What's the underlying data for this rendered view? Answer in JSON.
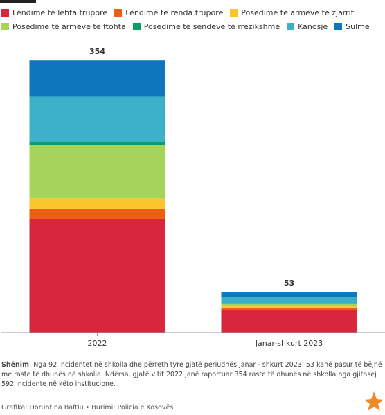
{
  "chart_data": {
    "type": "stacked_bar",
    "categories": [
      "2022",
      "Janar-shkurt 2023"
    ],
    "totals": [
      354,
      53
    ],
    "series": [
      {
        "name": "Lëndime të lehta trupore",
        "color": "#d7263d",
        "values": [
          148,
          30
        ]
      },
      {
        "name": "Lëndime të rënda trupore",
        "color": "#ea6012",
        "values": [
          13,
          2
        ]
      },
      {
        "name": "Posedime të armëve të zjarrit",
        "color": "#fbc62d",
        "values": [
          14,
          2
        ]
      },
      {
        "name": "Posedime të armëve të ftohta",
        "color": "#a6d45a",
        "values": [
          69,
          3
        ]
      },
      {
        "name": "Posedime të sendeve të rrezikshme",
        "color": "#0a9e5f",
        "values": [
          4,
          1
        ]
      },
      {
        "name": "Kanosje",
        "color": "#3cb0c9",
        "values": [
          59,
          8
        ]
      },
      {
        "name": "Sulme",
        "color": "#0d76bd",
        "values": [
          47,
          7
        ]
      }
    ],
    "ylim": [
      0,
      400
    ]
  },
  "note_label": "Shënim",
  "note": ": Nga 92 incidentet në shkolla dhe përreth tyre gjatë periudhës janar - shkurt 2023, 53 kanë pasur të bëjnë me raste të dhunës në shkolla. Ndërsa, gjatë vitit 2022 janë raportuar 354 raste të dhunës në shkolla nga gjithsej 592 incidente në këto institucione.",
  "source": "Grafika: Doruntina Baftiu • Burimi: Policia e Kosovës"
}
